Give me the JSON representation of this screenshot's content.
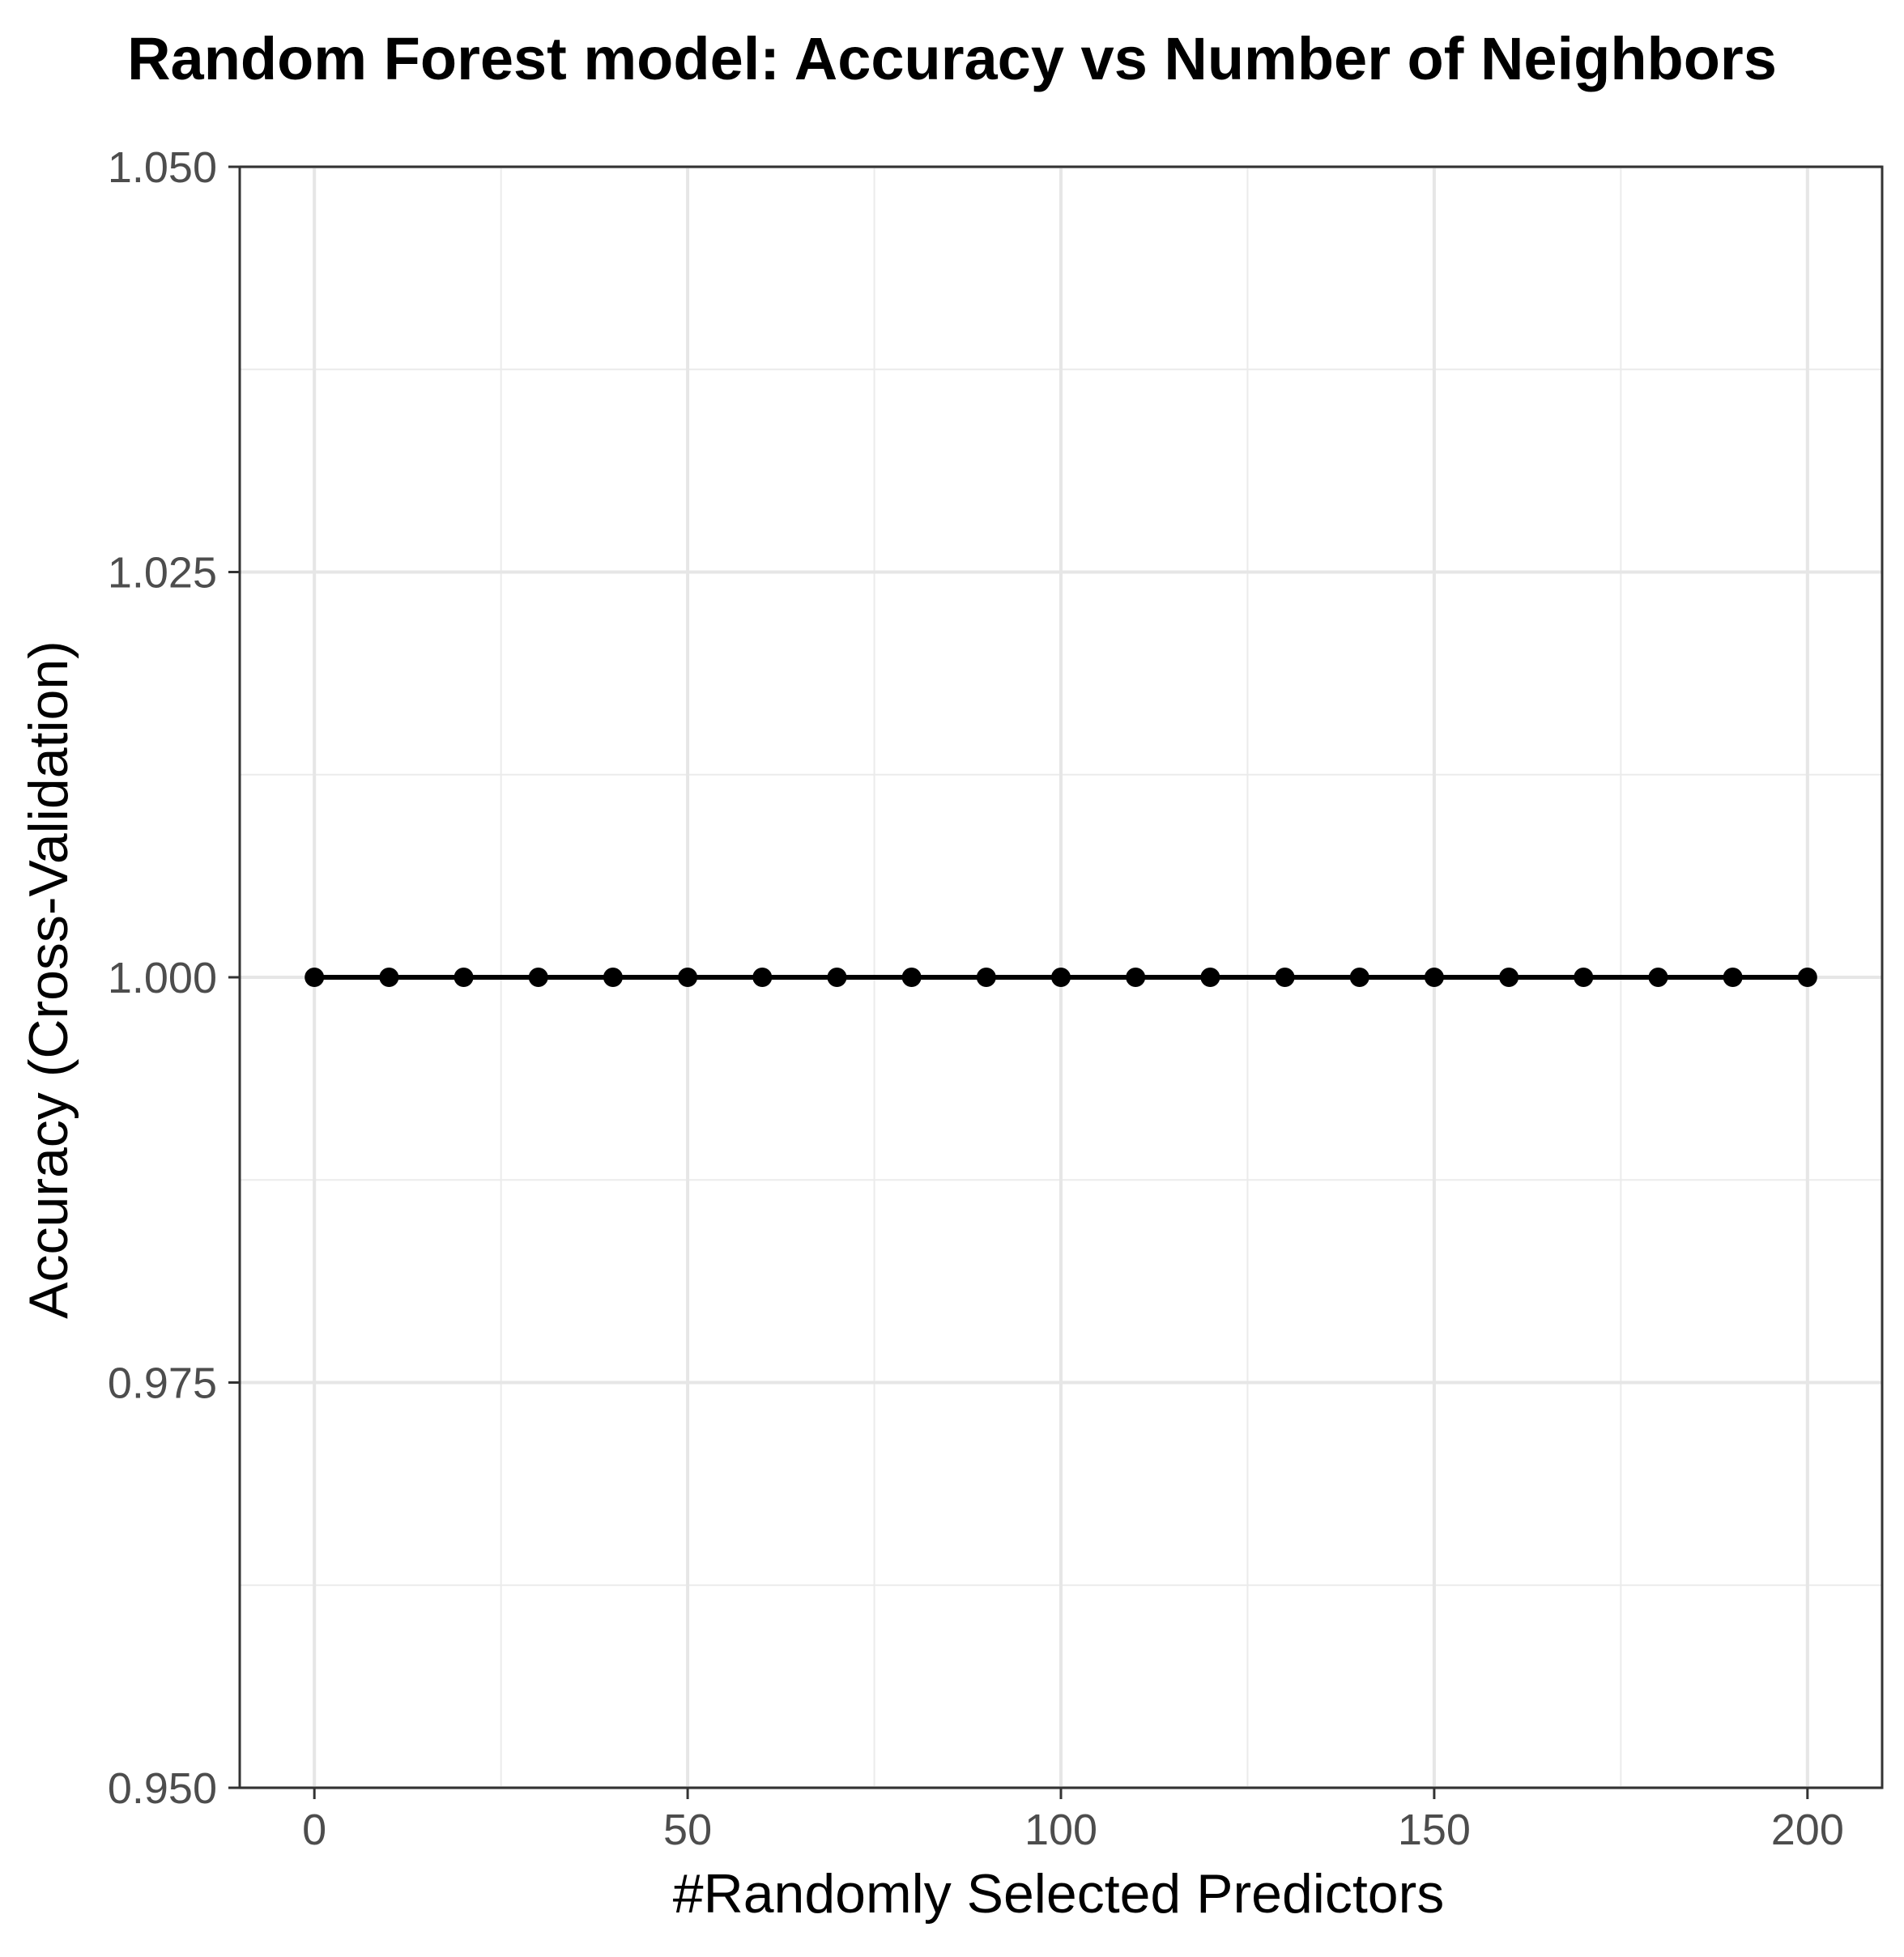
{
  "chart_data": {
    "type": "line",
    "title": "Random Forest model: Accuracy vs Number of Neighbors",
    "xlabel": "#Randomly Selected Predictors",
    "ylabel": "Accuracy (Cross-Validation)",
    "xlim": [
      -10,
      210
    ],
    "ylim": [
      0.95,
      1.05
    ],
    "x_ticks": [
      0,
      50,
      100,
      150,
      200
    ],
    "x_tick_labels": [
      "0",
      "50",
      "100",
      "150",
      "200"
    ],
    "y_ticks": [
      0.95,
      0.975,
      1.0,
      1.025,
      1.05
    ],
    "y_tick_labels": [
      "0.950",
      "0.975",
      "1.000",
      "1.025",
      "1.050"
    ],
    "grid": true,
    "series": [
      {
        "x": [
          0,
          10,
          20,
          30,
          40,
          50,
          60,
          70,
          80,
          90,
          100,
          110,
          120,
          130,
          140,
          150,
          160,
          170,
          180,
          190,
          200
        ],
        "y": [
          1,
          1,
          1,
          1,
          1,
          1,
          1,
          1,
          1,
          1,
          1,
          1,
          1,
          1,
          1,
          1,
          1,
          1,
          1,
          1,
          1
        ],
        "color": "#000000",
        "markers": true
      }
    ]
  }
}
